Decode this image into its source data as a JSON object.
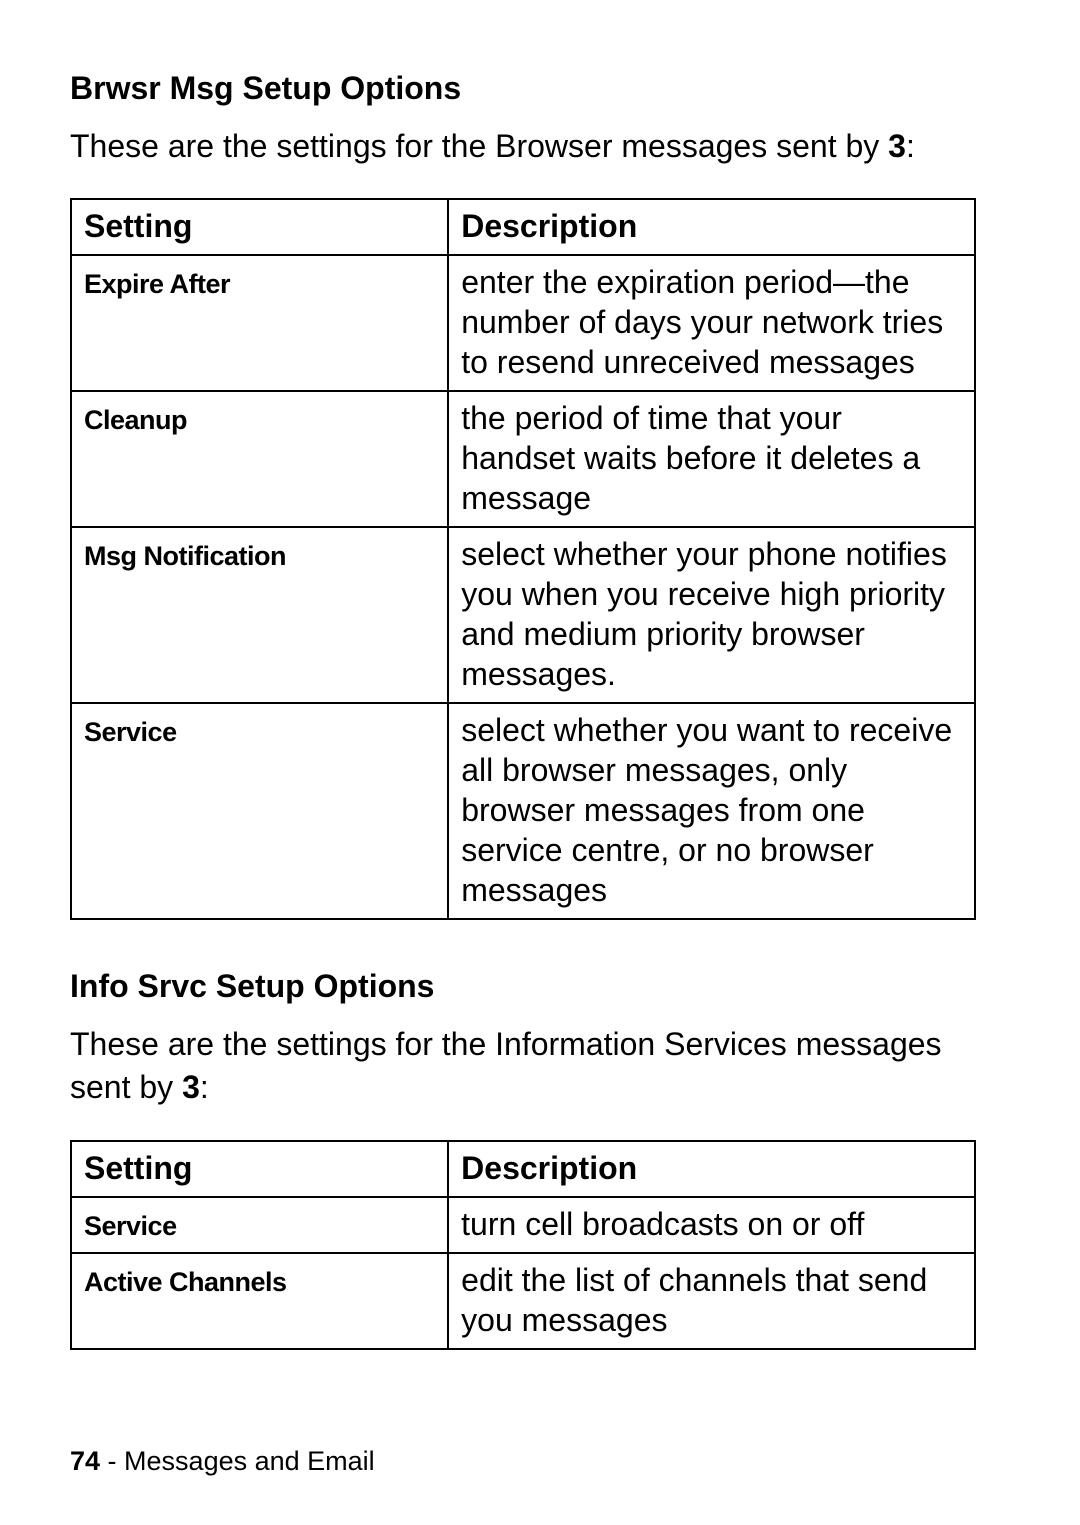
{
  "section1": {
    "heading": "Brwsr Msg Setup Options",
    "intro_prefix": "These are the settings for the Browser messages sent by ",
    "intro_bold": "3",
    "intro_suffix": ":",
    "table": {
      "headers": {
        "col1": "Setting",
        "col2": "Description"
      },
      "rows": [
        {
          "setting": "Expire After",
          "description": "enter the expiration period—the number of days your network tries to resend unreceived messages"
        },
        {
          "setting": "Cleanup",
          "description": "the period of time that your handset waits before it deletes a message"
        },
        {
          "setting": "Msg Notification",
          "description": "select whether your phone notifies you when you receive high priority and medium priority browser messages."
        },
        {
          "setting": "Service",
          "description": "select whether you want to receive all browser messages, only browser messages from one service centre, or no browser messages"
        }
      ]
    }
  },
  "section2": {
    "heading": "Info Srvc Setup Options",
    "intro_prefix": "These are the settings for the Information Services messages sent by ",
    "intro_bold": "3",
    "intro_suffix": ":",
    "table": {
      "headers": {
        "col1": "Setting",
        "col2": "Description"
      },
      "rows": [
        {
          "setting": "Service",
          "description": "turn cell broadcasts on or off"
        },
        {
          "setting": "Active Channels",
          "description": "edit the list of channels that send you messages"
        }
      ]
    }
  },
  "footer": {
    "page_num": "74",
    "separator": " - ",
    "chapter": "Messages and Email"
  }
}
